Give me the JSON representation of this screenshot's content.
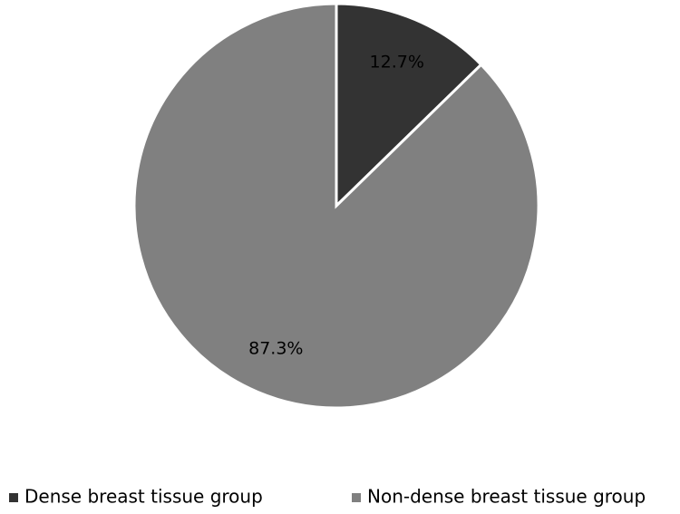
{
  "chart_data": {
    "type": "pie",
    "categories": [
      "Dense breast tissue group",
      "Non-dense breast tissue group"
    ],
    "values": [
      12.7,
      87.3
    ],
    "value_labels": [
      "12.7%",
      "87.3%"
    ],
    "colors": [
      "#333333",
      "#808080"
    ],
    "legend": "bottom"
  }
}
